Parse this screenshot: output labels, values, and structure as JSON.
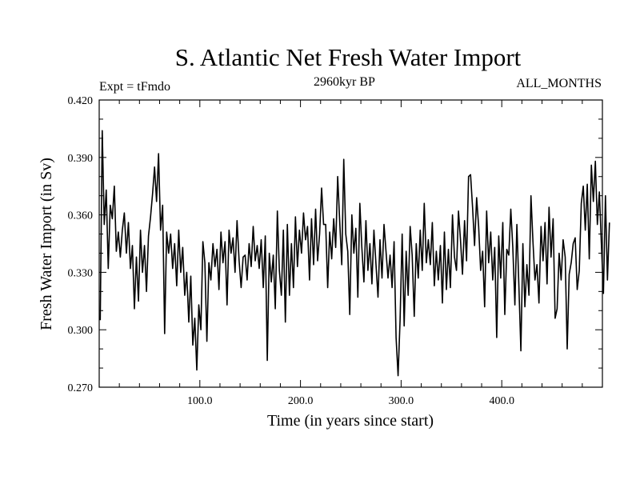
{
  "chart_data": {
    "type": "line",
    "title": "S. Atlantic Net Fresh Water Import",
    "experiment_label": "Expt = tFmdo",
    "epoch_label": "2960kyr BP",
    "period_label": "ALL_MONTHS",
    "xlabel": "Time (in years since start)",
    "ylabel": "Fresh Water Import (in Sv)",
    "xlim": [
      0,
      500
    ],
    "ylim": [
      0.27,
      0.42
    ],
    "x_ticks": [
      100.0,
      200.0,
      300.0,
      400.0
    ],
    "x_tick_labels": [
      "100.0",
      "200.0",
      "300.0",
      "400.0"
    ],
    "y_ticks": [
      0.27,
      0.3,
      0.33,
      0.36,
      0.39,
      0.42
    ],
    "y_tick_labels": [
      "0.270",
      "0.300",
      "0.330",
      "0.360",
      "0.390",
      "0.420"
    ],
    "grid": false,
    "series": [
      {
        "name": "Fresh Water Import",
        "x_start": 1,
        "x_step": 2,
        "values": [
          0.305,
          0.404,
          0.355,
          0.373,
          0.332,
          0.365,
          0.358,
          0.375,
          0.341,
          0.351,
          0.338,
          0.352,
          0.361,
          0.34,
          0.356,
          0.332,
          0.344,
          0.311,
          0.338,
          0.315,
          0.352,
          0.33,
          0.344,
          0.32,
          0.349,
          0.359,
          0.371,
          0.385,
          0.367,
          0.392,
          0.352,
          0.365,
          0.298,
          0.351,
          0.34,
          0.35,
          0.332,
          0.345,
          0.323,
          0.352,
          0.33,
          0.343,
          0.318,
          0.33,
          0.304,
          0.328,
          0.292,
          0.306,
          0.279,
          0.313,
          0.3,
          0.346,
          0.335,
          0.294,
          0.335,
          0.326,
          0.345,
          0.333,
          0.342,
          0.321,
          0.351,
          0.335,
          0.346,
          0.313,
          0.352,
          0.34,
          0.348,
          0.33,
          0.357,
          0.336,
          0.322,
          0.338,
          0.339,
          0.326,
          0.345,
          0.333,
          0.354,
          0.336,
          0.344,
          0.332,
          0.347,
          0.322,
          0.349,
          0.284,
          0.34,
          0.325,
          0.339,
          0.311,
          0.362,
          0.331,
          0.318,
          0.352,
          0.304,
          0.355,
          0.318,
          0.345,
          0.322,
          0.359,
          0.333,
          0.352,
          0.34,
          0.361,
          0.347,
          0.354,
          0.326,
          0.358,
          0.334,
          0.363,
          0.336,
          0.35,
          0.374,
          0.355,
          0.355,
          0.322,
          0.351,
          0.337,
          0.358,
          0.343,
          0.38,
          0.356,
          0.334,
          0.389,
          0.35,
          0.341,
          0.308,
          0.36,
          0.34,
          0.353,
          0.317,
          0.366,
          0.343,
          0.325,
          0.357,
          0.331,
          0.345,
          0.324,
          0.352,
          0.334,
          0.317,
          0.347,
          0.327,
          0.355,
          0.341,
          0.327,
          0.339,
          0.322,
          0.346,
          0.296,
          0.276,
          0.305,
          0.35,
          0.302,
          0.341,
          0.318,
          0.354,
          0.339,
          0.307,
          0.345,
          0.327,
          0.352,
          0.331,
          0.366,
          0.335,
          0.347,
          0.334,
          0.356,
          0.323,
          0.341,
          0.326,
          0.344,
          0.314,
          0.351,
          0.321,
          0.342,
          0.322,
          0.36,
          0.338,
          0.331,
          0.362,
          0.347,
          0.329,
          0.357,
          0.336,
          0.38,
          0.381,
          0.364,
          0.344,
          0.369,
          0.354,
          0.331,
          0.341,
          0.312,
          0.362,
          0.335,
          0.351,
          0.326,
          0.343,
          0.296,
          0.349,
          0.327,
          0.356,
          0.308,
          0.342,
          0.339,
          0.363,
          0.343,
          0.313,
          0.355,
          0.323,
          0.289,
          0.345,
          0.312,
          0.334,
          0.318,
          0.37,
          0.346,
          0.326,
          0.334,
          0.314,
          0.354,
          0.336,
          0.356,
          0.324,
          0.364,
          0.338,
          0.358,
          0.306,
          0.311,
          0.34,
          0.326,
          0.347,
          0.338,
          0.29,
          0.329,
          0.335,
          0.345,
          0.348,
          0.321,
          0.331,
          0.366,
          0.375,
          0.352,
          0.376,
          0.337,
          0.386,
          0.367,
          0.388,
          0.355,
          0.372,
          0.345,
          0.319,
          0.37,
          0.326,
          0.356
        ]
      }
    ]
  }
}
